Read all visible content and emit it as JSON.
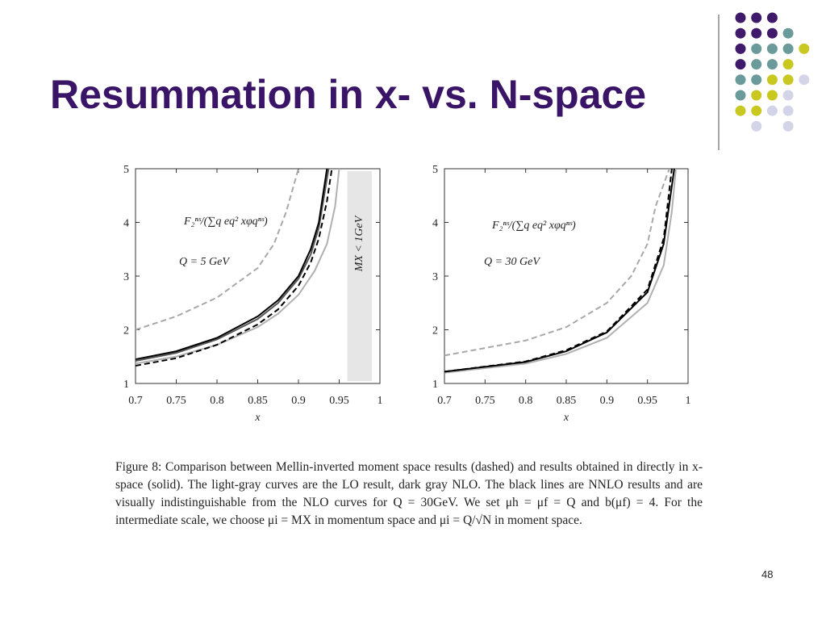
{
  "slide": {
    "title": "Resummation in x- vs. N-space",
    "caption": "Figure 8: Comparison between Mellin-inverted moment space results (dashed) and results obtained in directly in x-space (solid). The light-gray curves are the LO result, dark gray NLO. The black lines are NNLO results and are visually indistinguishable from the NLO curves for Q = 30GeV. We set μh = μf = Q and b(μf) = 4. For the intermediate scale, we choose μi = MX in momentum space and μi = Q/√N in moment space.",
    "page_number": "48"
  },
  "chart_data": [
    {
      "type": "line",
      "x_label": "x",
      "xlim": [
        0.7,
        1
      ],
      "ylim": [
        1,
        5
      ],
      "xticks": [
        0.7,
        0.75,
        0.8,
        0.85,
        0.9,
        0.95,
        1
      ],
      "yticks": [
        1,
        2,
        3,
        4,
        5
      ],
      "annotations": [
        "F₂ⁿˢ/(∑q eq² xφqⁿˢ)",
        "Q = 5 GeV"
      ],
      "shaded_region": {
        "x": [
          0.96,
          0.99
        ],
        "label": "MX < 1GeV",
        "color": "#e6e6e6"
      },
      "series": [
        {
          "color": "#b0b0b0",
          "dashed": false,
          "x": [
            0.7,
            0.75,
            0.8,
            0.85,
            0.875,
            0.9,
            0.92,
            0.935,
            0.945,
            0.95
          ],
          "values": [
            1.37,
            1.5,
            1.72,
            2.05,
            2.3,
            2.65,
            3.1,
            3.6,
            4.3,
            5
          ]
        },
        {
          "color": "#555555",
          "dashed": false,
          "x": [
            0.7,
            0.75,
            0.8,
            0.85,
            0.875,
            0.9,
            0.915,
            0.925,
            0.937
          ],
          "values": [
            1.42,
            1.57,
            1.82,
            2.2,
            2.5,
            2.95,
            3.4,
            3.9,
            5
          ]
        },
        {
          "color": "#000000",
          "dashed": false,
          "x": [
            0.7,
            0.75,
            0.8,
            0.85,
            0.875,
            0.9,
            0.915,
            0.925,
            0.935
          ],
          "values": [
            1.45,
            1.6,
            1.85,
            2.25,
            2.55,
            3.0,
            3.5,
            4.0,
            5
          ]
        },
        {
          "color": "#000000",
          "dashed": true,
          "x": [
            0.7,
            0.75,
            0.8,
            0.85,
            0.875,
            0.9,
            0.915,
            0.925,
            0.935,
            0.941
          ],
          "values": [
            1.33,
            1.47,
            1.72,
            2.1,
            2.38,
            2.82,
            3.25,
            3.7,
            4.4,
            5
          ]
        },
        {
          "color": "#a8a8a8",
          "dashed": true,
          "x": [
            0.7,
            0.75,
            0.8,
            0.85,
            0.87,
            0.885,
            0.9
          ],
          "values": [
            2.0,
            2.25,
            2.6,
            3.15,
            3.6,
            4.2,
            5
          ]
        }
      ]
    },
    {
      "type": "line",
      "x_label": "x",
      "xlim": [
        0.7,
        1
      ],
      "ylim": [
        1,
        5
      ],
      "xticks": [
        0.7,
        0.75,
        0.8,
        0.85,
        0.9,
        0.95,
        1
      ],
      "yticks": [
        1,
        2,
        3,
        4,
        5
      ],
      "annotations": [
        "F₂ⁿˢ/(∑q eq² xφqⁿˢ)",
        "Q = 30 GeV"
      ],
      "series": [
        {
          "color": "#b0b0b0",
          "dashed": false,
          "x": [
            0.7,
            0.8,
            0.85,
            0.9,
            0.95,
            0.97,
            0.98,
            0.985
          ],
          "values": [
            1.2,
            1.37,
            1.55,
            1.85,
            2.5,
            3.2,
            4.2,
            5
          ]
        },
        {
          "color": "#000000",
          "dashed": false,
          "x": [
            0.7,
            0.8,
            0.85,
            0.9,
            0.95,
            0.97,
            0.983
          ],
          "values": [
            1.22,
            1.4,
            1.6,
            1.95,
            2.7,
            3.6,
            5
          ]
        },
        {
          "color": "#000000",
          "dashed": true,
          "x": [
            0.7,
            0.8,
            0.85,
            0.9,
            0.95,
            0.97,
            0.98
          ],
          "values": [
            1.22,
            1.41,
            1.62,
            1.97,
            2.75,
            3.7,
            5
          ]
        },
        {
          "color": "#a8a8a8",
          "dashed": true,
          "x": [
            0.7,
            0.8,
            0.85,
            0.9,
            0.93,
            0.95,
            0.96,
            0.977
          ],
          "values": [
            1.52,
            1.8,
            2.05,
            2.5,
            3.0,
            3.6,
            4.3,
            5
          ]
        }
      ]
    }
  ]
}
